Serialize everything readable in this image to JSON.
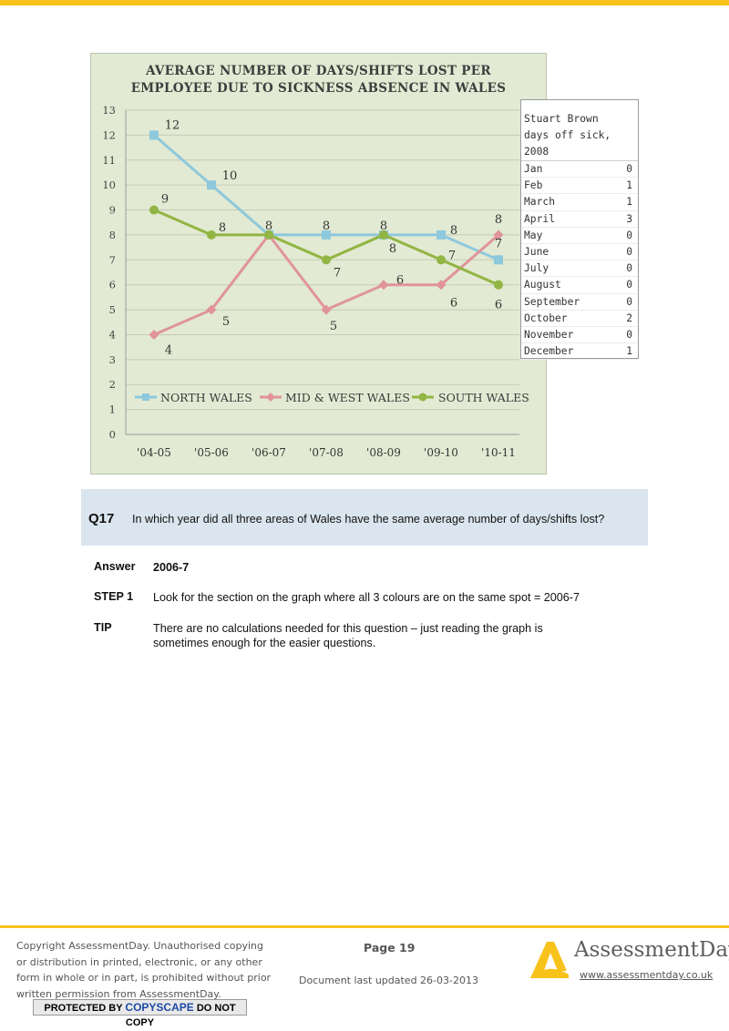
{
  "chart_data": {
    "type": "line",
    "title_line1": "AVERAGE NUMBER OF DAYS/SHIFTS LOST PER",
    "title_line2": "EMPLOYEE DUE TO SICKNESS ABSENCE IN WALES",
    "categories": [
      "'04-05",
      "'05-06",
      "'06-07",
      "'07-08",
      "'08-09",
      "'09-10",
      "'10-11"
    ],
    "yticks": [
      "0",
      "1",
      "2",
      "3",
      "4",
      "5",
      "6",
      "7",
      "8",
      "9",
      "10",
      "11",
      "12",
      "13"
    ],
    "ylim": [
      0,
      13
    ],
    "grid": true,
    "legend_position": "bottom",
    "series": [
      {
        "name": "NORTH WALES",
        "color": "#8ec8dc",
        "marker": "square",
        "values": [
          12,
          10,
          8,
          8,
          8,
          8,
          7
        ]
      },
      {
        "name": "MID & WEST WALES",
        "color": "#e0949a",
        "marker": "diamond",
        "values": [
          4,
          5,
          8,
          5,
          6,
          6,
          8
        ]
      },
      {
        "name": "SOUTH WALES",
        "color": "#92b543",
        "marker": "circle",
        "values": [
          9,
          8,
          8,
          7,
          8,
          7,
          6
        ]
      }
    ]
  },
  "sick_table": {
    "header": "Stuart Brown\ndays off sick,\n2008",
    "rows": [
      {
        "month": "Jan",
        "days": "0"
      },
      {
        "month": "Feb",
        "days": "1"
      },
      {
        "month": "March",
        "days": "1"
      },
      {
        "month": "April",
        "days": "3"
      },
      {
        "month": "May",
        "days": "0"
      },
      {
        "month": "June",
        "days": "0"
      },
      {
        "month": "July",
        "days": "0"
      },
      {
        "month": "August",
        "days": "0"
      },
      {
        "month": "September",
        "days": "0"
      },
      {
        "month": "October",
        "days": "2"
      },
      {
        "month": "November",
        "days": "0"
      },
      {
        "month": "December",
        "days": "1"
      }
    ]
  },
  "question": {
    "number": "Q17",
    "text": "In which year did all three areas of Wales have the same average number of days/shifts lost?"
  },
  "answer": {
    "label": "Answer",
    "value": "2006-7"
  },
  "step1": {
    "label": "STEP 1",
    "text": "Look for the section on the graph where all 3 colours are on the same spot = 2006-7"
  },
  "tip": {
    "label": "TIP",
    "text": "There are no calculations needed for this question – just reading the graph is sometimes enough for the easier questions."
  },
  "footer": {
    "copyright": "Copyright AssessmentDay. Unauthorised copying or distribution in printed, electronic, or any other form in whole or in part, is prohibited without prior written permission from AssessmentDay.",
    "copyscape_pre": "PROTECTED BY",
    "copyscape_brand": "COPYSCAPE",
    "copyscape_post": "DO NOT COPY",
    "page": "Page 19",
    "updated": "Document last updated 26-03-2013",
    "brand_name": "AssessmentDay",
    "brand_url": "www.assessmentday.co.uk",
    "accent_color": "#f7c21a"
  }
}
